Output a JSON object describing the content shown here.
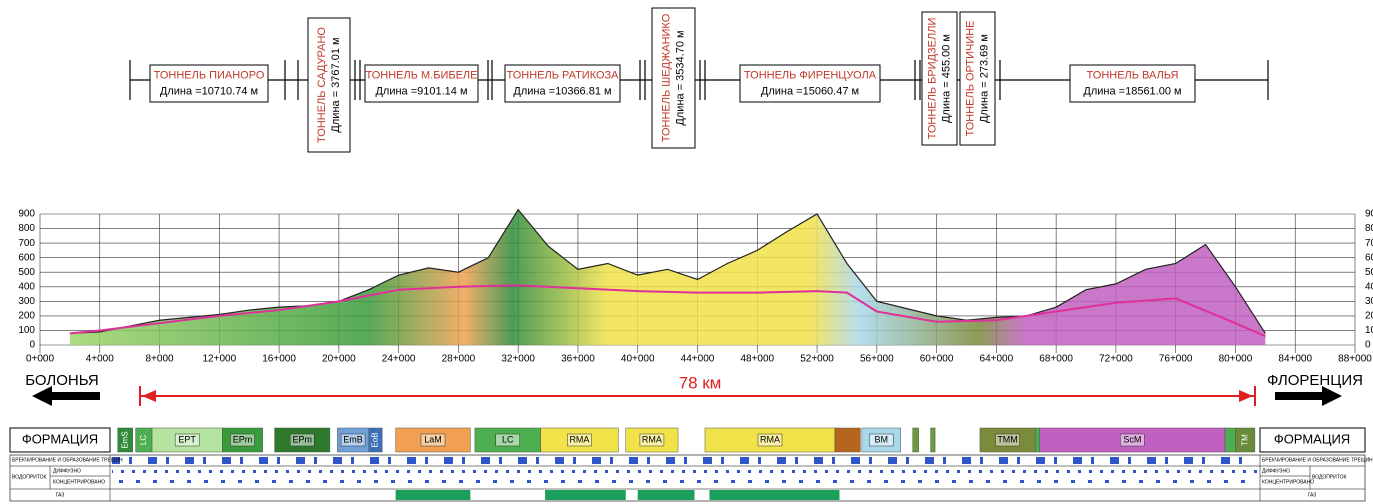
{
  "tunnels": [
    {
      "name": "ТОННЕЛЬ ПИАНОРО",
      "length": "Длина =10710.74 м"
    },
    {
      "name": "ТОННЕЛЬ САДУРАНО",
      "length": "Длина = 3767.01 м"
    },
    {
      "name": "ТОННЕЛЬ М.БИБЕЛЕ",
      "length": "Длина =9101.14 м"
    },
    {
      "name": "ТОННЕЛЬ РАТИКОЗА",
      "length": "Длина =10366.81 м"
    },
    {
      "name": "ТОННЕЛЬ ШЕДЖАНИКО",
      "length": "Длина = 3534.70 м"
    },
    {
      "name": "ТОННЕЛЬ ФИРЕНЦУОЛА",
      "length": "Длина =15060.47 м"
    },
    {
      "name": "ТОННЕЛЬ БРИДЗЕЛЛИ",
      "length": "Длина = 455.00 м"
    },
    {
      "name": "ТОННЕЛЬ ОРТИЧИНЕ",
      "length": "Длина = 273.69 м"
    },
    {
      "name": "ТОННЕЛЬ ВАЛЬЯ",
      "length": "Длина =18561.00 м"
    }
  ],
  "profile": {
    "xlim": [
      0,
      88
    ],
    "ylim": [
      0,
      900
    ],
    "yticks": [
      0,
      100,
      200,
      300,
      400,
      500,
      600,
      700,
      800,
      900
    ],
    "xticks": [
      {
        "value": 0,
        "label": "0+000"
      },
      {
        "value": 4,
        "label": "4+000"
      },
      {
        "value": 8,
        "label": "8+000"
      },
      {
        "value": 12,
        "label": "12+000"
      },
      {
        "value": 16,
        "label": "16+000"
      },
      {
        "value": 20,
        "label": "20+000"
      },
      {
        "value": 24,
        "label": "24+000"
      },
      {
        "value": 28,
        "label": "28+000"
      },
      {
        "value": 32,
        "label": "32+000"
      },
      {
        "value": 36,
        "label": "36+000"
      },
      {
        "value": 40,
        "label": "40+000"
      },
      {
        "value": 44,
        "label": "44+000"
      },
      {
        "value": 48,
        "label": "48+000"
      },
      {
        "value": 52,
        "label": "52+000"
      },
      {
        "value": 56,
        "label": "56+000"
      },
      {
        "value": 60,
        "label": "60+000"
      },
      {
        "value": 64,
        "label": "64+000"
      },
      {
        "value": 68,
        "label": "68+000"
      },
      {
        "value": 72,
        "label": "72+000"
      },
      {
        "value": 76,
        "label": "76+000"
      },
      {
        "value": 80,
        "label": "80+000"
      },
      {
        "value": 84,
        "label": "84+000"
      },
      {
        "value": 88,
        "label": "88+000"
      }
    ],
    "x": [
      2,
      4,
      6,
      8,
      10,
      12,
      14,
      16,
      18,
      20,
      22,
      24,
      26,
      28,
      30,
      32,
      34,
      36,
      38,
      40,
      42,
      44,
      46,
      48,
      50,
      52,
      54,
      56,
      58,
      60,
      62,
      64,
      66,
      68,
      70,
      72,
      74,
      76,
      78,
      80,
      82
    ],
    "terrain": [
      80,
      90,
      130,
      170,
      190,
      210,
      240,
      260,
      270,
      300,
      380,
      480,
      530,
      500,
      600,
      930,
      680,
      520,
      560,
      480,
      520,
      450,
      560,
      650,
      780,
      900,
      560,
      300,
      250,
      200,
      170,
      190,
      200,
      260,
      380,
      420,
      520,
      560,
      690,
      400,
      80
    ],
    "rail_x": [
      2,
      4,
      8,
      12,
      16,
      20,
      24,
      28,
      32,
      36,
      40,
      44,
      48,
      52,
      54,
      56,
      60,
      64,
      68,
      72,
      76,
      80,
      82
    ],
    "rail": [
      80,
      100,
      150,
      200,
      240,
      300,
      380,
      400,
      410,
      390,
      370,
      360,
      360,
      370,
      360,
      230,
      160,
      170,
      230,
      290,
      320,
      150,
      60
    ]
  },
  "labels": {
    "start": "БОЛОНЬЯ",
    "end": "ФЛОРЕНЦИЯ",
    "distance": "78 км"
  },
  "formations": {
    "title": "ФОРМАЦИЯ",
    "units": [
      {
        "label": "EmS",
        "from": 5.2,
        "to": 6.2,
        "color": "#2e8b3a"
      },
      {
        "label": "LC",
        "from": 6.4,
        "to": 7.5,
        "color": "#4caf50"
      },
      {
        "label": "EPT",
        "from": 7.5,
        "to": 12.2,
        "color": "#b5e3a0"
      },
      {
        "label": "EPm",
        "from": 12.2,
        "to": 14.9,
        "color": "#3a9b3a"
      },
      {
        "label": "EPm",
        "from": 15.7,
        "to": 19.4,
        "color": "#2d7a2d"
      },
      {
        "label": "EmB",
        "from": 19.9,
        "to": 22.0,
        "color": "#6fa0d8"
      },
      {
        "label": "EoB",
        "from": 22.0,
        "to": 22.9,
        "color": "#3d6eb8"
      },
      {
        "label": "LaM",
        "from": 23.8,
        "to": 28.8,
        "color": "#f0a050"
      },
      {
        "label": "LC",
        "from": 29.1,
        "to": 33.5,
        "color": "#4caf50"
      },
      {
        "label": "RMA",
        "from": 33.5,
        "to": 38.7,
        "color": "#f2e24a"
      },
      {
        "label": "RMA",
        "from": 39.2,
        "to": 42.7,
        "color": "#f2e24a"
      },
      {
        "label": "RMA",
        "from": 44.5,
        "to": 53.2,
        "color": "#f2e24a"
      },
      {
        "label": null,
        "from": 53.2,
        "to": 54.9,
        "color": "#b5651d"
      },
      {
        "label": "BM",
        "from": 55.0,
        "to": 57.6,
        "color": "#a8d8ea"
      },
      {
        "label": null,
        "from": 58.4,
        "to": 58.8,
        "color": "#6b9b3a"
      },
      {
        "label": null,
        "from": 59.6,
        "to": 59.9,
        "color": "#6b9b3a"
      },
      {
        "label": "TMM",
        "from": 62.9,
        "to": 66.6,
        "color": "#7a8b3a"
      },
      {
        "label": null,
        "from": 66.6,
        "to": 66.9,
        "color": "#4caf50"
      },
      {
        "label": "ScM",
        "from": 66.9,
        "to": 79.3,
        "color": "#c060c0"
      },
      {
        "label": null,
        "from": 79.3,
        "to": 80.0,
        "color": "#4caf50"
      },
      {
        "label": "TM",
        "from": 80.0,
        "to": 81.3,
        "color": "#6b8b3a"
      }
    ]
  },
  "rows": {
    "fracturing": "БРЕКЧИРОВАНИЕ И ОБРАЗОВАНИЕ ТРЕЩИН",
    "inflow": "ВОДОПРИТОК",
    "diffuse": "ДИФФУЗНО",
    "concentrated": "КОНЦЕНТРИРОВАНО",
    "gas": "ГАЗ",
    "gas_zones": [
      [
        23.8,
        28.8
      ],
      [
        33.8,
        39.2
      ],
      [
        40.0,
        43.8
      ],
      [
        44.8,
        53.5
      ]
    ]
  }
}
